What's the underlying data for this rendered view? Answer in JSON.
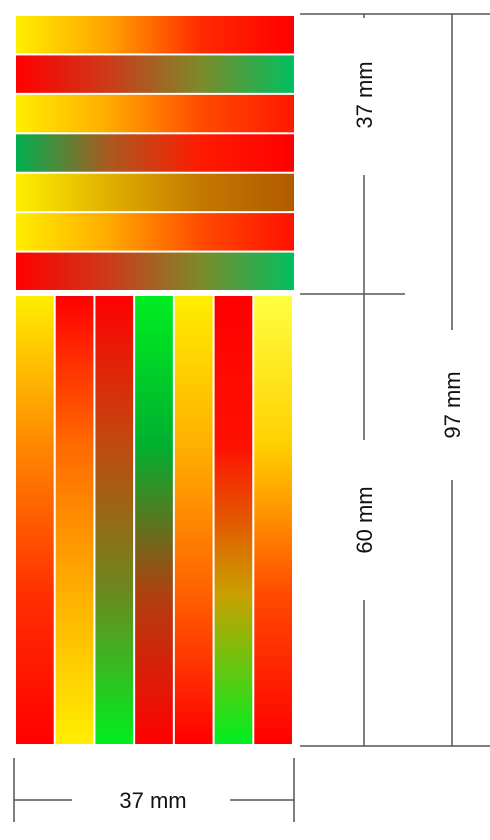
{
  "dimensions": {
    "top_section_height": "37 mm",
    "bottom_section_height": "60 mm",
    "total_height": "97 mm",
    "width": "37 mm"
  },
  "horizontal_stripes": [
    {
      "colors": [
        "#ffee00",
        "#ffa200",
        "#ff2a00",
        "#ff0000"
      ]
    },
    {
      "colors": [
        "#ff0000",
        "#cc3a1a",
        "#7d8a2a",
        "#00c060"
      ]
    },
    {
      "colors": [
        "#ffee00",
        "#ffaa00",
        "#ff4a00",
        "#ff1800"
      ]
    },
    {
      "colors": [
        "#00b050",
        "#aa5a20",
        "#ff1a00",
        "#ff0000"
      ]
    },
    {
      "colors": [
        "#ffee00",
        "#e0b000",
        "#c47800",
        "#b05a00"
      ]
    },
    {
      "colors": [
        "#ffee00",
        "#ffaa00",
        "#ff4a00",
        "#ff1000"
      ]
    },
    {
      "colors": [
        "#ff0000",
        "#cc3a1a",
        "#7d8a2a",
        "#00c060"
      ]
    }
  ],
  "vertical_stripes": [
    {
      "colors": [
        "#ffee00",
        "#ff8800",
        "#ff3000",
        "#ff0000"
      ]
    },
    {
      "colors": [
        "#ff0000",
        "#ff6a00",
        "#ffb000",
        "#ffee00"
      ]
    },
    {
      "colors": [
        "#ff0000",
        "#c04a10",
        "#6a8a20",
        "#00ee20"
      ]
    },
    {
      "colors": [
        "#00ee20",
        "#00b030",
        "#b04010",
        "#ff0000"
      ]
    },
    {
      "colors": [
        "#ffee00",
        "#ffb000",
        "#ff6000",
        "#ff0000"
      ]
    },
    {
      "colors": [
        "#ff0000",
        "#ff1000",
        "#c8a000",
        "#00ee20"
      ]
    },
    {
      "colors": [
        "#ffff40",
        "#ffd000",
        "#ff4a00",
        "#ff0000"
      ]
    }
  ]
}
